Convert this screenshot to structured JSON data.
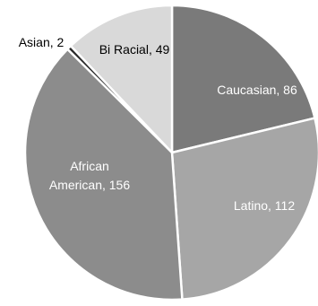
{
  "chart_data": {
    "type": "pie",
    "start_angle_deg": 0,
    "direction": "clockwise",
    "slices": [
      {
        "label": "Caucasian",
        "value": 86,
        "display": "Caucasian, 86",
        "color": "#7a7a7a",
        "label_color": "#ffffff",
        "label_position": "inside"
      },
      {
        "label": "Latino",
        "value": 112,
        "display": "Latino, 112",
        "color": "#a6a6a6",
        "label_color": "#ffffff",
        "label_position": "inside"
      },
      {
        "label": "African American",
        "value": 156,
        "display_lines": [
          "African",
          "American, 156"
        ],
        "color": "#8c8c8c",
        "label_color": "#ffffff",
        "label_position": "inside"
      },
      {
        "label": "Asian",
        "value": 2,
        "display": "Asian, 2",
        "color": "#2b2b2b",
        "label_color": "#000000",
        "label_position": "outside"
      },
      {
        "label": "Bi Racial",
        "value": 49,
        "display": "Bi Racial, 49",
        "color": "#d9d9d9",
        "label_color": "#000000",
        "label_position": "inside"
      }
    ]
  }
}
